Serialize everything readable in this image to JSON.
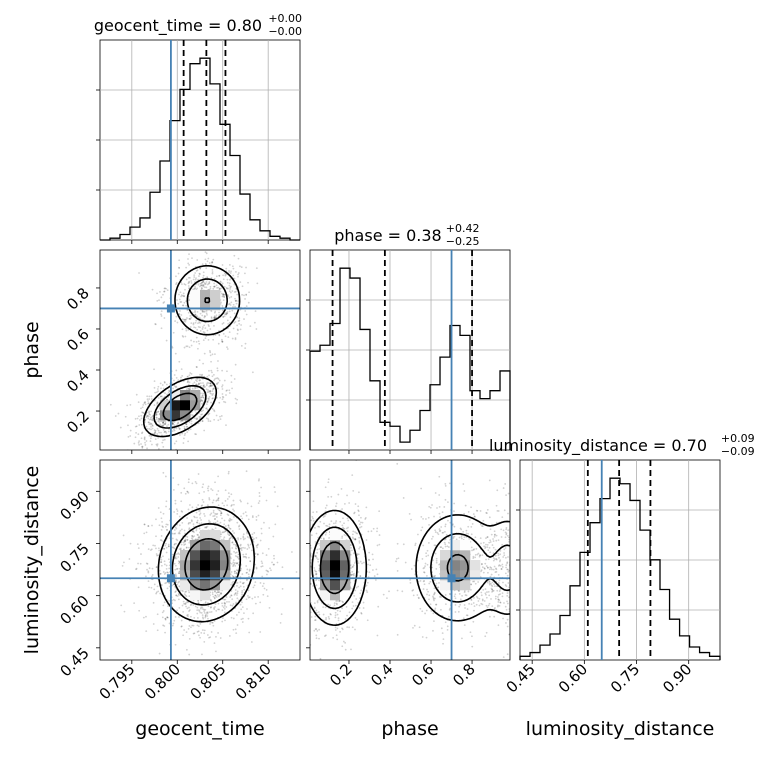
{
  "colors": {
    "truth": "#4682b4",
    "hist": "#000000",
    "grid": "#b0b0b0",
    "density_dark": "#000000",
    "density_light": "#f2f2f2"
  },
  "chart_data": {
    "type": "corner",
    "parameters": [
      "geocent_time",
      "phase",
      "luminosity_distance"
    ],
    "truths": {
      "geocent_time": 0.7993,
      "phase": 0.7,
      "luminosity_distance": 0.65
    },
    "ranges": {
      "geocent_time": [
        0.7915,
        0.8135
      ],
      "phase": [
        0.01,
        0.985
      ],
      "luminosity_distance": [
        0.415,
        0.99
      ]
    },
    "ticks": {
      "geocent_time": {
        "values": [
          0.795,
          0.8,
          0.805,
          0.81
        ],
        "labels": [
          "0.795",
          "0.800",
          "0.805",
          "0.810"
        ]
      },
      "phase": {
        "values": [
          0.2,
          0.4,
          0.6,
          0.8
        ],
        "labels": [
          "0.2",
          "0.4",
          "0.6",
          "0.8"
        ]
      },
      "luminosity_distance": {
        "values": [
          0.45,
          0.6,
          0.75,
          0.9
        ],
        "labels": [
          "0.45",
          "0.60",
          "0.75",
          "0.90"
        ]
      }
    },
    "titles": {
      "geocent_time": {
        "text": "geocent_time = 0.80",
        "sup": "+0.00",
        "sub": "−0.00"
      },
      "phase": {
        "text": "phase = 0.38",
        "sup": "+0.42",
        "sub": "−0.25"
      },
      "luminosity_distance": {
        "text": "luminosity_distance = 0.70",
        "sup": "+0.09",
        "sub": "−0.09"
      }
    },
    "quantiles": {
      "geocent_time": [
        0.8007,
        0.8032,
        0.8053
      ],
      "phase": [
        0.12,
        0.375,
        0.8
      ],
      "luminosity_distance": [
        0.61,
        0.7,
        0.79
      ]
    },
    "histograms": {
      "geocent_time": {
        "edges": [
          0.7915,
          0.7926,
          0.7937,
          0.7948,
          0.7959,
          0.797,
          0.7981,
          0.7992,
          0.8003,
          0.8014,
          0.8025,
          0.8036,
          0.8047,
          0.8058,
          0.8069,
          0.808,
          0.8091,
          0.8102,
          0.8113,
          0.8124,
          0.8135
        ],
        "counts": [
          0,
          1,
          3,
          7,
          12,
          26,
          43,
          65,
          82,
          96,
          99,
          85,
          63,
          46,
          25,
          11,
          5,
          2,
          1,
          0
        ]
      },
      "phase": {
        "edges": [
          0.01,
          0.0588,
          0.1075,
          0.1563,
          0.205,
          0.2538,
          0.3025,
          0.3513,
          0.4,
          0.4488,
          0.4975,
          0.5463,
          0.595,
          0.6438,
          0.6925,
          0.7413,
          0.79,
          0.8388,
          0.8875,
          0.9363,
          0.985
        ],
        "counts": [
          50,
          53,
          64,
          92,
          87,
          61,
          35,
          14,
          12,
          4,
          10,
          20,
          33,
          47,
          63,
          58,
          30,
          26,
          30,
          40
        ]
      },
      "luminosity_distance": {
        "edges": [
          0.415,
          0.4438,
          0.4725,
          0.5013,
          0.53,
          0.5588,
          0.5875,
          0.6163,
          0.645,
          0.6738,
          0.7025,
          0.7313,
          0.76,
          0.7888,
          0.8175,
          0.845,
          0.8738,
          0.9025,
          0.9313,
          0.96,
          0.99
        ],
        "counts": [
          2,
          4,
          8,
          14,
          24,
          40,
          58,
          74,
          87,
          98,
          95,
          86,
          70,
          54,
          38,
          22,
          13,
          7,
          4,
          2
        ]
      }
    },
    "density": {
      "geocent_time|phase": {
        "modes": [
          {
            "x": 0.8003,
            "y": 0.22,
            "sx": 0.0018,
            "sy": 0.065,
            "rho": 0.5,
            "w": 1.0
          },
          {
            "x": 0.8033,
            "y": 0.74,
            "sx": 0.0018,
            "sy": 0.085,
            "rho": 0.0,
            "w": 0.6
          }
        ]
      },
      "geocent_time|luminosity_distance": {
        "modes": [
          {
            "x": 0.8032,
            "y": 0.69,
            "sx": 0.0024,
            "sy": 0.075,
            "rho": 0.1,
            "w": 1.0
          }
        ]
      },
      "phase|luminosity_distance": {
        "modes": [
          {
            "x": 0.13,
            "y": 0.68,
            "sx": 0.07,
            "sy": 0.075,
            "rho": 0.0,
            "w": 1.0
          },
          {
            "x": 0.73,
            "y": 0.68,
            "sx": 0.1,
            "sy": 0.075,
            "rho": 0.0,
            "w": 0.7
          },
          {
            "x": 0.98,
            "y": 0.68,
            "sx": 0.06,
            "sy": 0.075,
            "rho": 0.0,
            "w": 0.4
          }
        ]
      }
    },
    "contour_levels": [
      0.39,
      0.86,
      0.99
    ],
    "grid": true
  }
}
